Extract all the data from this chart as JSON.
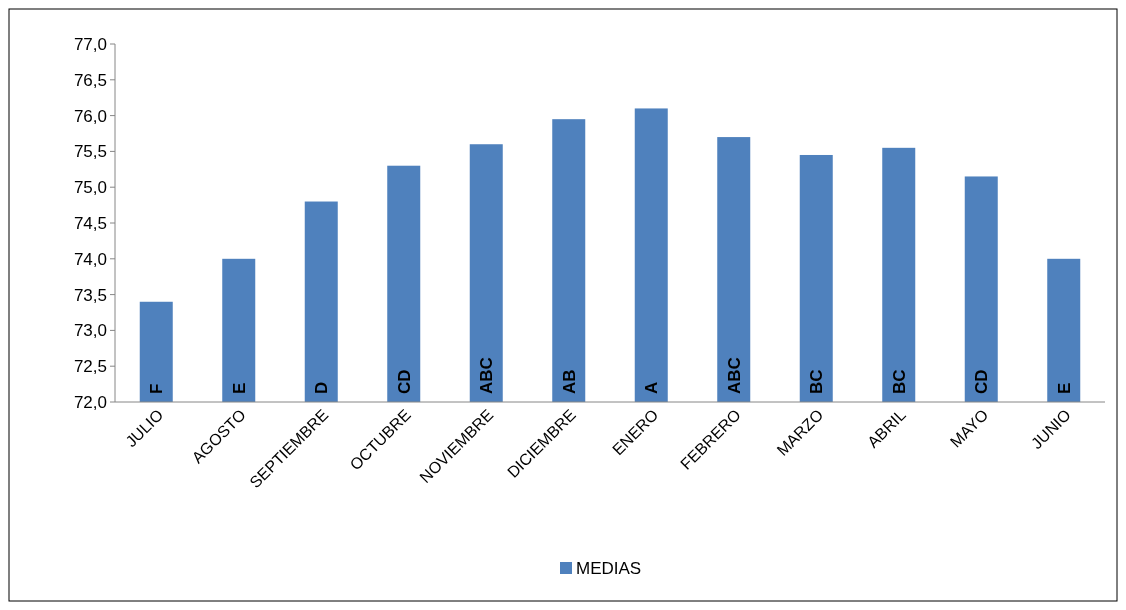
{
  "chart_data": {
    "type": "bar",
    "categories": [
      "JULIO",
      "AGOSTO",
      "SEPTIEMBRE",
      "OCTUBRE",
      "NOVIEMBRE",
      "DICIEMBRE",
      "ENERO",
      "FEBRERO",
      "MARZO",
      "ABRIL",
      "MAYO",
      "JUNIO"
    ],
    "series": [
      {
        "name": "MEDIAS",
        "color": "#4f81bd",
        "values": [
          73.4,
          74.0,
          74.8,
          75.3,
          75.6,
          75.95,
          76.1,
          75.7,
          75.45,
          75.55,
          75.15,
          74.0
        ]
      }
    ],
    "ylim": [
      72,
      77
    ],
    "yticks": [
      {
        "value": 72,
        "label": "72,0"
      },
      {
        "value": 72.5,
        "label": "72,5"
      },
      {
        "value": 73,
        "label": "73,0"
      },
      {
        "value": 73.5,
        "label": "73,5"
      },
      {
        "value": 74,
        "label": "74,0"
      },
      {
        "value": 74.5,
        "label": "74,5"
      },
      {
        "value": 75,
        "label": "75,0"
      },
      {
        "value": 75.5,
        "label": "75,5"
      },
      {
        "value": 76,
        "label": "76,0"
      },
      {
        "value": 76.5,
        "label": "76,5"
      },
      {
        "value": 77,
        "label": "77,0"
      }
    ],
    "annotations": [
      "F",
      "E",
      "D",
      "CD",
      "ABC",
      "AB",
      "A",
      "ABC",
      "BC",
      "BC",
      "CD",
      "E"
    ],
    "grid": false,
    "legend": "bottom"
  }
}
